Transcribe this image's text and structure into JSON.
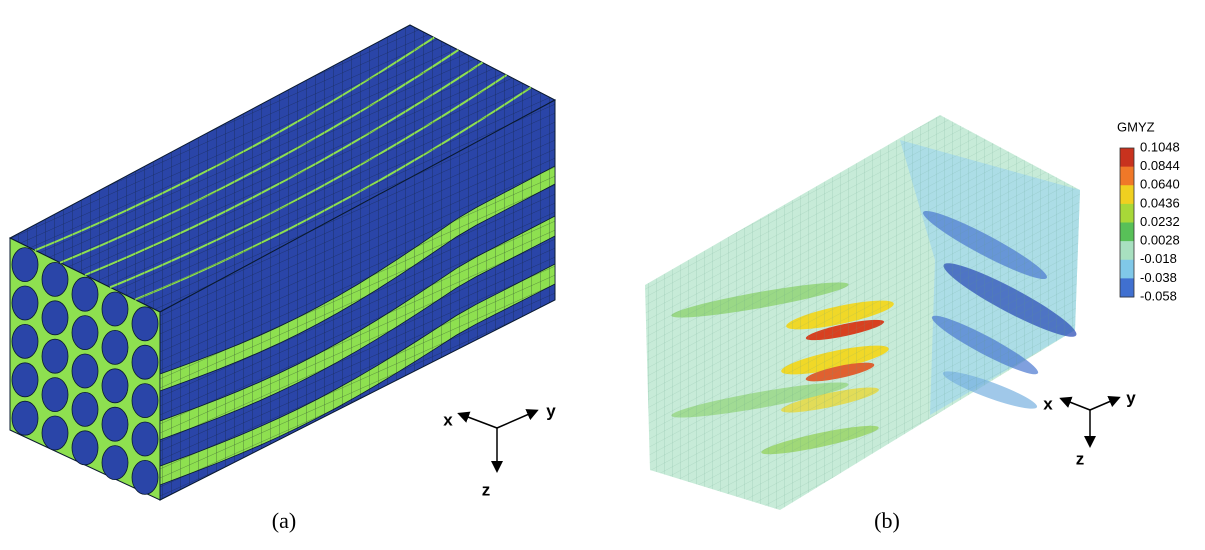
{
  "panels": [
    {
      "caption": "(a)",
      "axes": {
        "x": "x",
        "y": "y",
        "z": "z"
      }
    },
    {
      "caption": "(b)",
      "axes": {
        "x": "x",
        "y": "y",
        "z": "z"
      },
      "colorbar": {
        "title": "GMYZ",
        "labels": [
          "0.1048",
          "0.0844",
          "0.0640",
          "0.0436",
          "0.0232",
          "0.0028",
          "-0.018",
          "-0.038",
          "-0.058"
        ]
      }
    }
  ]
}
